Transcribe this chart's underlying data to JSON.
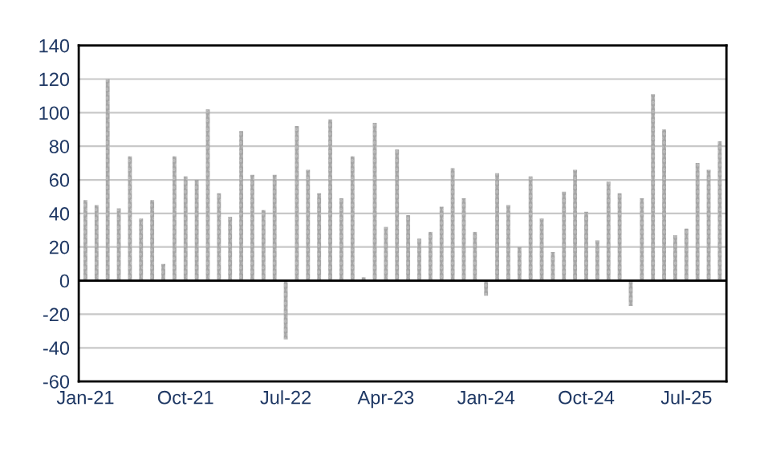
{
  "chart_data": {
    "type": "bar",
    "categories": [
      "Jan-21",
      null,
      null,
      null,
      null,
      null,
      null,
      null,
      null,
      "Oct-21",
      null,
      null,
      null,
      null,
      null,
      null,
      null,
      null,
      "Jul-22",
      null,
      null,
      null,
      null,
      null,
      null,
      null,
      null,
      "Apr-23",
      null,
      null,
      null,
      null,
      null,
      null,
      null,
      null,
      "Jan-24",
      null,
      null,
      null,
      null,
      null,
      null,
      null,
      null,
      "Oct-24",
      null,
      null,
      null,
      null,
      null,
      null,
      null,
      null,
      "Jul-25",
      null,
      null,
      null
    ],
    "values": [
      48,
      45,
      120,
      43,
      74,
      37,
      48,
      10,
      74,
      62,
      60,
      102,
      52,
      38,
      89,
      63,
      42,
      63,
      -35,
      92,
      66,
      52,
      96,
      49,
      74,
      2,
      94,
      32,
      78,
      39,
      25,
      29,
      44,
      67,
      49,
      29,
      -9,
      64,
      45,
      20,
      62,
      37,
      17,
      53,
      66,
      41,
      24,
      59,
      52,
      -15,
      49,
      111,
      90,
      27,
      31,
      70,
      66,
      83
    ],
    "color": "#a6a6a6",
    "ylim": [
      -60,
      140
    ],
    "yticks": [
      -60,
      -40,
      -20,
      0,
      20,
      40,
      60,
      80,
      100,
      120,
      140
    ],
    "ref_lines": [
      {
        "axis": "y",
        "value": 0,
        "color": "#000000"
      }
    ],
    "grid": "y"
  }
}
